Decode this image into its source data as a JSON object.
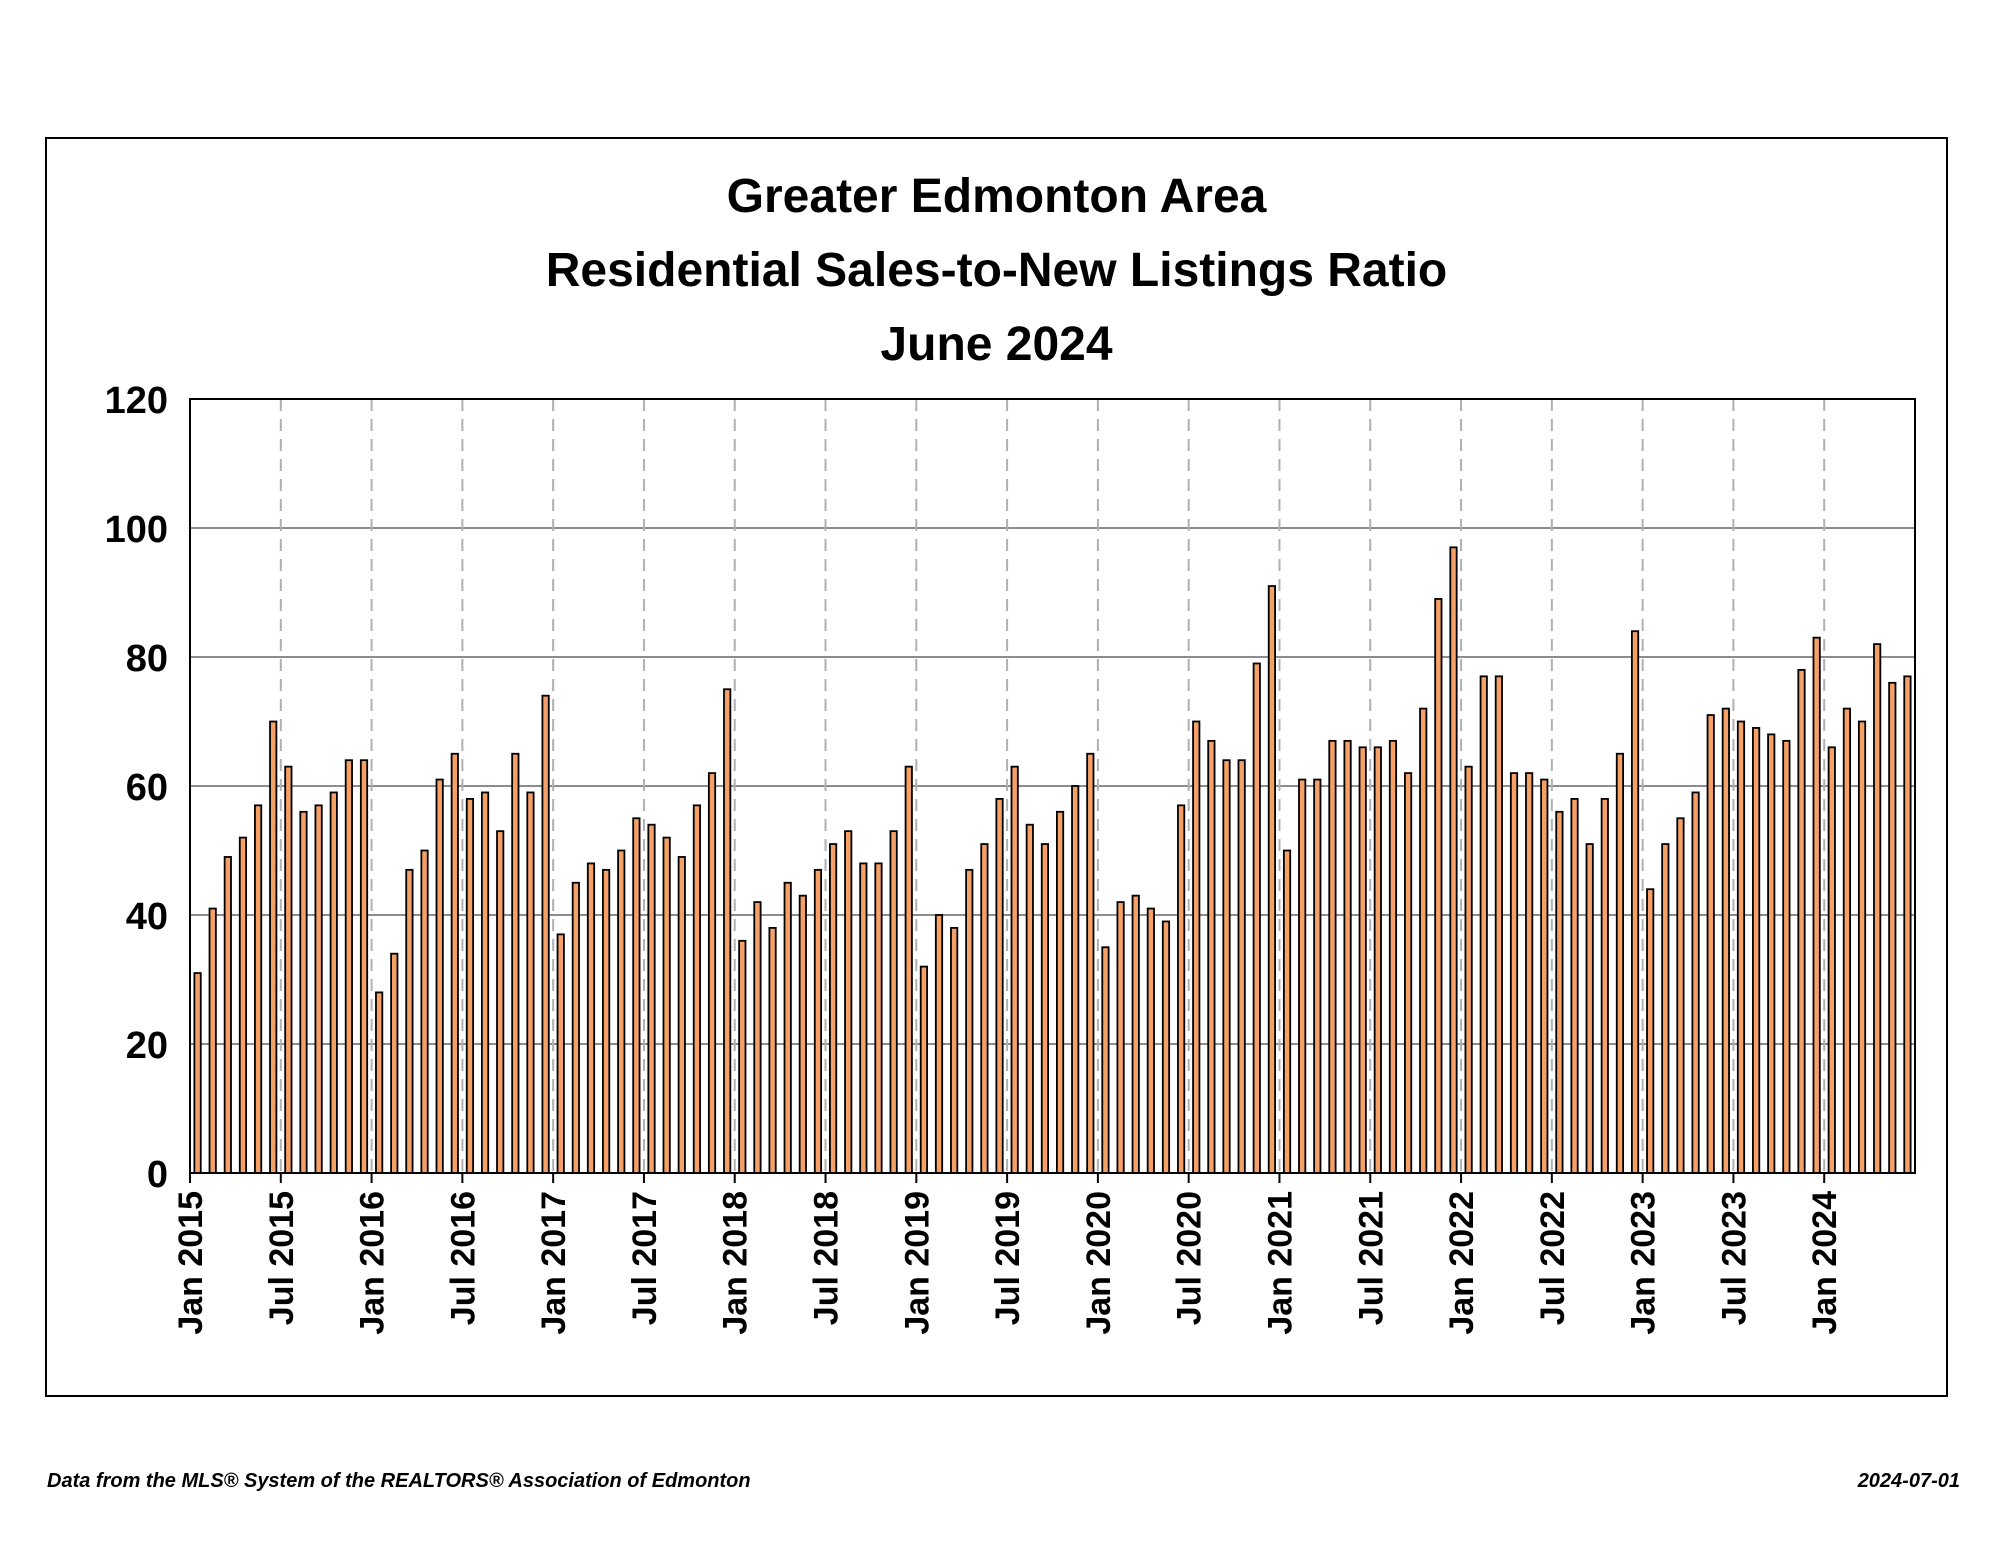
{
  "footer": {
    "source": "Data from the MLS® System of the REALTORS® Association of Edmonton",
    "date": "2024-07-01"
  },
  "chart_data": {
    "type": "bar",
    "title_lines": [
      "Greater Edmonton Area",
      "Residential Sales-to-New Listings Ratio",
      "June 2024"
    ],
    "xlabel": "",
    "ylabel": "",
    "ylim": [
      0,
      120
    ],
    "yticks": [
      0,
      20,
      40,
      60,
      80,
      100,
      120
    ],
    "grid": true,
    "bar_color": "#f4a066",
    "bar_edge_color": "#000000",
    "x_start": "Jan 2015",
    "x_tick_labels": [
      "Jan 2015",
      "Jul 2015",
      "Jan 2016",
      "Jul 2016",
      "Jan 2017",
      "Jul 2017",
      "Jan 2018",
      "Jul 2018",
      "Jan 2019",
      "Jul 2019",
      "Jan 2020",
      "Jul 2020",
      "Jan 2021",
      "Jul 2021",
      "Jan 2022",
      "Jul 2022",
      "Jan 2023",
      "Jul 2023",
      "Jan 2024"
    ],
    "values": [
      31,
      41,
      49,
      52,
      57,
      70,
      63,
      56,
      57,
      59,
      64,
      64,
      28,
      34,
      47,
      50,
      61,
      65,
      58,
      59,
      53,
      65,
      59,
      74,
      37,
      45,
      48,
      47,
      50,
      55,
      54,
      52,
      49,
      57,
      62,
      75,
      36,
      42,
      38,
      45,
      43,
      47,
      51,
      53,
      48,
      48,
      53,
      63,
      32,
      40,
      38,
      47,
      51,
      58,
      63,
      54,
      51,
      56,
      60,
      65,
      35,
      42,
      43,
      41,
      39,
      57,
      70,
      67,
      64,
      64,
      79,
      91,
      50,
      61,
      61,
      67,
      67,
      66,
      66,
      67,
      62,
      72,
      89,
      97,
      63,
      77,
      77,
      62,
      62,
      61,
      56,
      58,
      51,
      58,
      65,
      84,
      44,
      51,
      55,
      59,
      71,
      72,
      70,
      69,
      68,
      67,
      78,
      83,
      66,
      72,
      70,
      82,
      76,
      77
    ]
  }
}
